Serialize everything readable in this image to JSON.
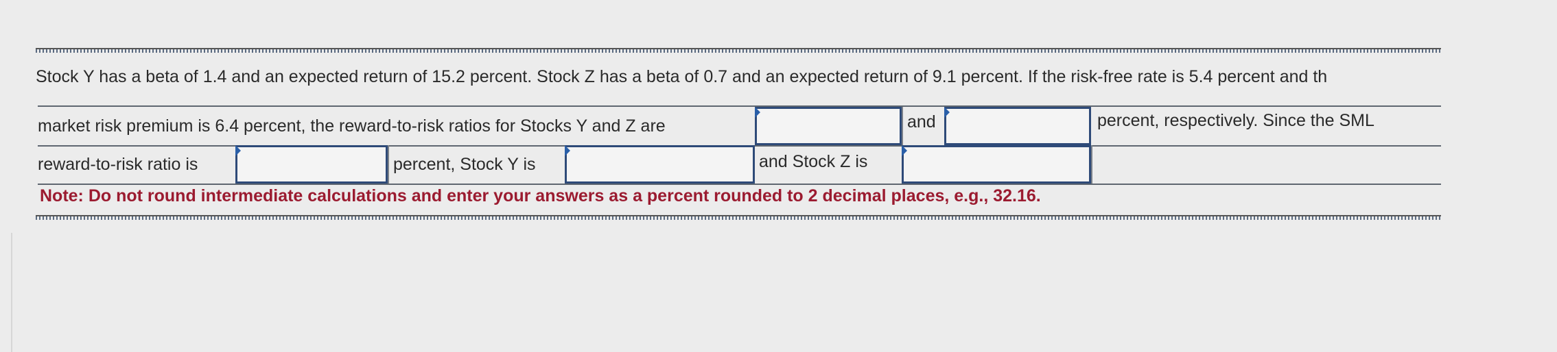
{
  "question": {
    "line1": "Stock Y has a beta of 1.4 and an expected return of 15.2 percent. Stock Z has a beta of 0.7 and an expected return of 9.1 percent. If the risk-free rate is 5.4 percent and th",
    "row1_text1": "market risk premium is 6.4 percent, the reward-to-risk ratios for Stocks Y and Z are",
    "row1_text2": "and",
    "row1_text3": "percent, respectively. Since the SML",
    "row2_text1": "reward-to-risk ratio is",
    "row2_text2": "percent, Stock Y is",
    "row2_text3": "and Stock Z is"
  },
  "inputs": {
    "ratio_y": "",
    "ratio_z": "",
    "sml_ratio": "",
    "stock_y_status": "",
    "stock_z_status": ""
  },
  "note": "Note: Do not round intermediate calculations and enter your answers as a percent rounded to 2 decimal places, e.g., 32.16.",
  "colors": {
    "note": "#9b1b30",
    "input_border": "#2e4a78",
    "input_marker": "#2a5fa8"
  }
}
